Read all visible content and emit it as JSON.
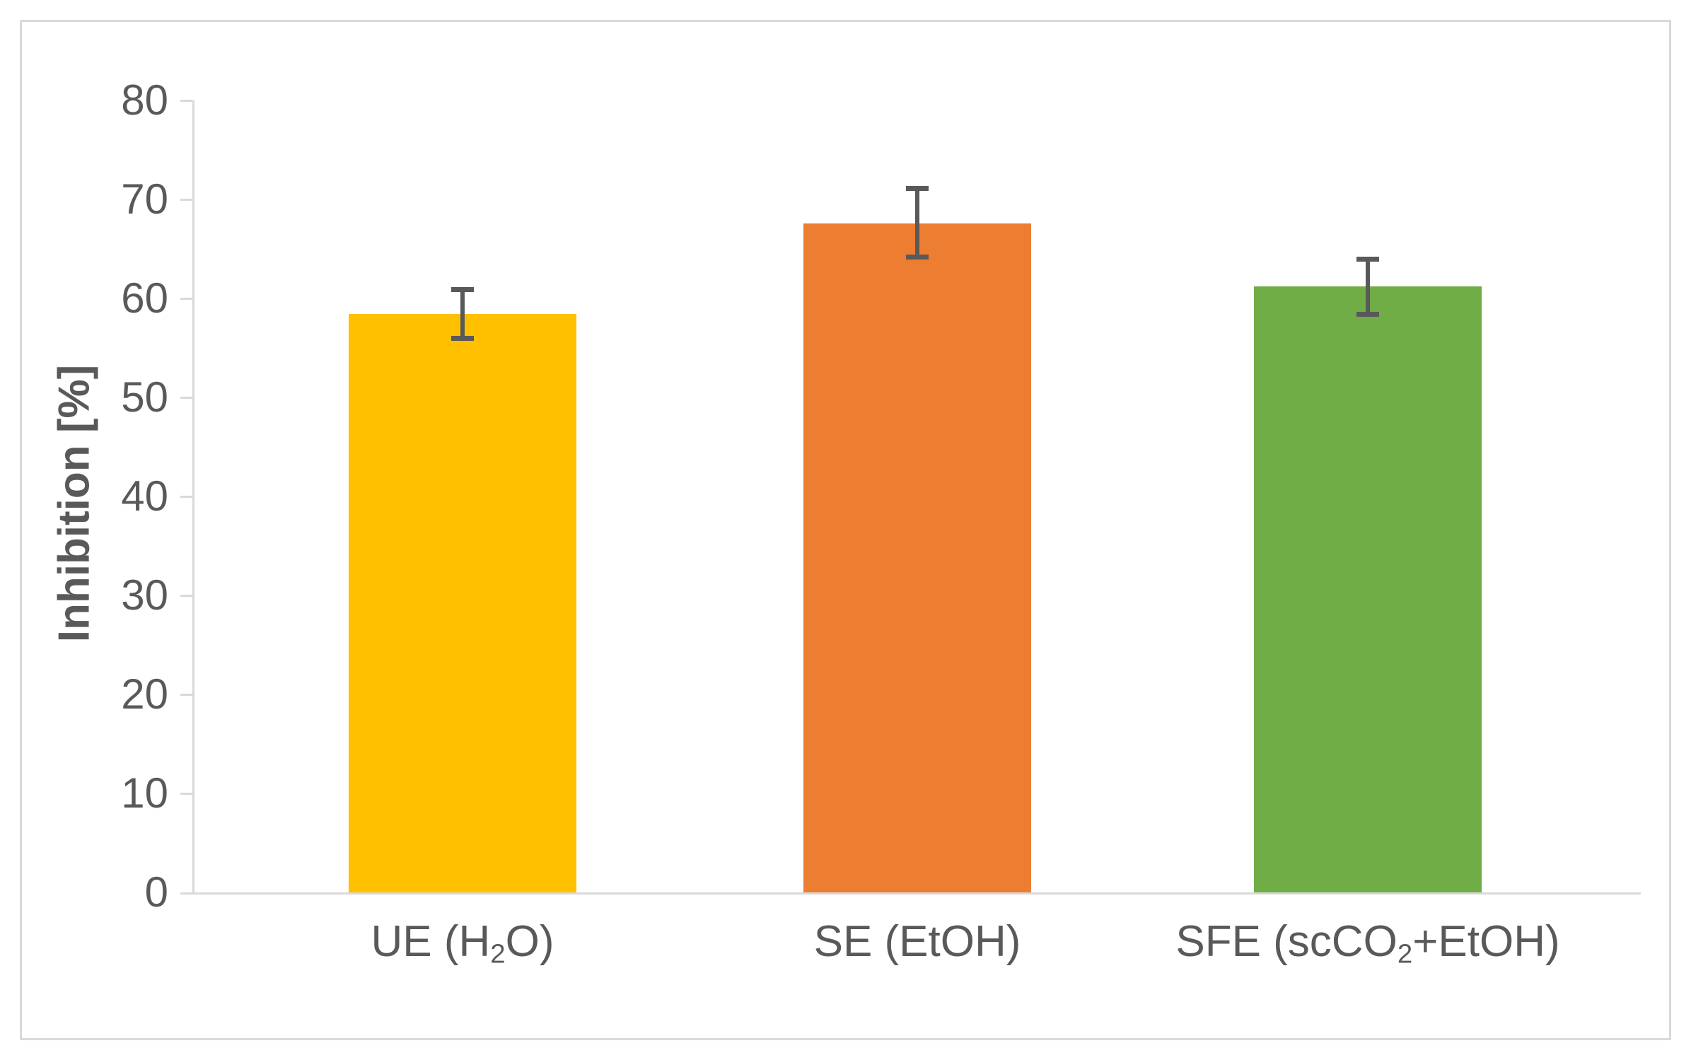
{
  "chart_data": {
    "type": "bar",
    "title": "",
    "categories": [
      "UE (H₂O)",
      "SE (EtOH)",
      "SFE (scCO₂+EtOH)"
    ],
    "category_parts": [
      [
        {
          "t": "UE (H"
        },
        {
          "t": "2",
          "sub": true
        },
        {
          "t": "O)"
        }
      ],
      [
        {
          "t": "SE (EtOH)"
        }
      ],
      [
        {
          "t": "SFE (scCO"
        },
        {
          "t": "2",
          "sub": true
        },
        {
          "t": "+EtOH)"
        }
      ]
    ],
    "values": [
      58.4,
      67.6,
      61.2
    ],
    "error_high": [
      60.9,
      71.1,
      64.0
    ],
    "error_low": [
      56.0,
      64.2,
      58.4
    ],
    "xlabel": "",
    "ylabel": "Inhibition [%]",
    "ylim": [
      0,
      80
    ],
    "yticks": [
      0,
      10,
      20,
      30,
      40,
      50,
      60,
      70,
      80
    ],
    "grid": false,
    "legend_position": "none",
    "bar_colors": [
      "#FFC000",
      "#ED7D31",
      "#70AD47"
    ],
    "error_bar_color": "#595959"
  },
  "colors": {
    "background": "#FFFFFF",
    "frame_border": "#D9D9D9",
    "axis_line": "#D9D9D9",
    "text": "#595959"
  }
}
